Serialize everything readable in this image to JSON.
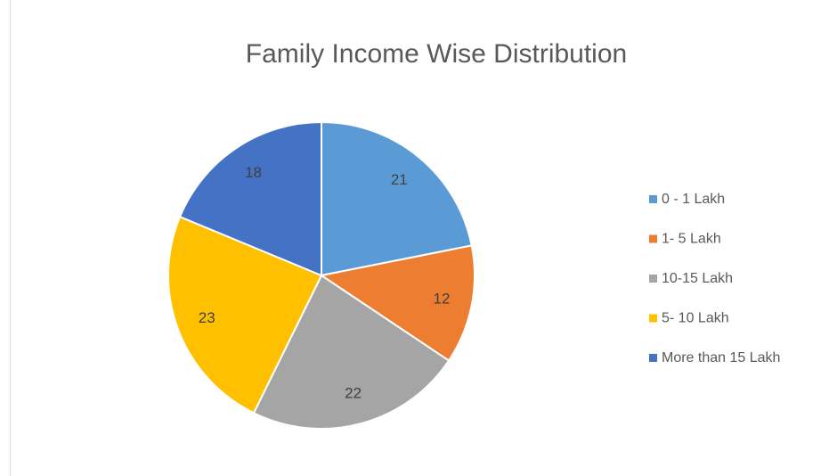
{
  "chart_data": {
    "type": "pie",
    "title": "Family Income Wise Distribution",
    "categories": [
      "0 - 1 Lakh",
      "1- 5 Lakh",
      "10-15 Lakh",
      "5- 10 Lakh",
      "More than 15 Lakh"
    ],
    "values": [
      21,
      12,
      22,
      23,
      18
    ],
    "colors": [
      "#5b9bd5",
      "#ed7d31",
      "#a5a5a5",
      "#ffc000",
      "#4472c4"
    ],
    "legend": "right"
  }
}
